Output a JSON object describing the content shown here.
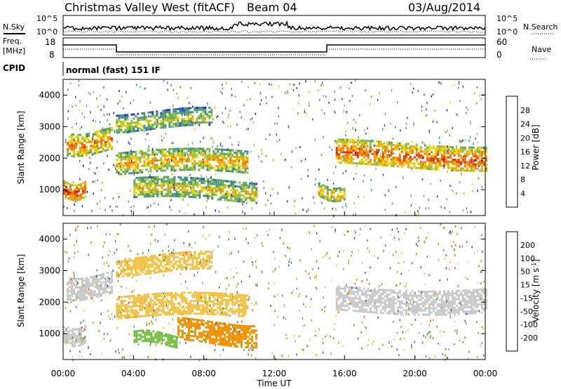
{
  "header": {
    "title": "Christmas Valley West (fitACF)",
    "beam": "Beam 04",
    "date": "03/Aug/2014"
  },
  "panels": {
    "nsky_label": "N.Sky",
    "nsearch_label": "N.Search",
    "nsky_ticks": [
      "10^5",
      "10^0"
    ],
    "nsearch_ticks": [
      "10^5",
      "10^0"
    ],
    "freq_label": "Freq.",
    "freq_unit": "[MHz]",
    "freq_ticks": [
      "18",
      "8"
    ],
    "nave_label": "Nave",
    "nave_ticks": [
      "60",
      "0"
    ],
    "cpid_label": "CPID",
    "cpid_text": "normal (fast) 151 IF"
  },
  "colors": {
    "power_scale": [
      "#1a1acc",
      "#2a4fb0",
      "#3d8a8a",
      "#5ca35c",
      "#8fbf3a",
      "#f0d000",
      "#f5a000",
      "#f26c00",
      "#e83000",
      "#d40000"
    ],
    "velocity_scale": [
      "#e81010",
      "#f05a00",
      "#f29200",
      "#f0c040",
      "#c8c8c8",
      "#c8c8c8",
      "#70c040",
      "#40a040",
      "#3a5fb0",
      "#1a1a9c"
    ]
  },
  "chart_data": [
    {
      "type": "heatmap",
      "name": "power",
      "ylabel": "Slant Range [km]",
      "xlabel": "Time UT",
      "xlim": [
        "00:00",
        "24:00"
      ],
      "ylim": [
        180,
        4500
      ],
      "x_ticks": [
        "00:00",
        "04:00",
        "08:00",
        "12:00",
        "16:00",
        "20:00",
        "00:00"
      ],
      "y_ticks": [
        1000,
        2000,
        3000,
        4000
      ],
      "colorbar_label": "Power [dB]",
      "colorbar_ticks": [
        "4",
        "8",
        "12",
        "16",
        "20",
        "24",
        "28"
      ],
      "colorbar_range": [
        0,
        30
      ],
      "bands": [
        {
          "t": [
            0,
            1.2
          ],
          "r": [
            800,
            1300
          ],
          "level": 26
        },
        {
          "t": [
            0.2,
            2.8
          ],
          "r": [
            2200,
            2900
          ],
          "level": 22
        },
        {
          "t": [
            3.0,
            8.5
          ],
          "r": [
            2900,
            3500
          ],
          "level": 16
        },
        {
          "t": [
            3.0,
            10.5
          ],
          "r": [
            1500,
            2200
          ],
          "level": 20
        },
        {
          "t": [
            4.0,
            11.0
          ],
          "r": [
            650,
            1300
          ],
          "level": 18
        },
        {
          "t": [
            15.5,
            24.0
          ],
          "r": [
            1700,
            2500
          ],
          "level": 24
        },
        {
          "t": [
            14.5,
            16.0
          ],
          "r": [
            750,
            1200
          ],
          "level": 20
        }
      ]
    },
    {
      "type": "heatmap",
      "name": "velocity",
      "ylabel": "Slant Range [km]",
      "xlabel": "Time UT",
      "xlim": [
        "00:00",
        "24:00"
      ],
      "ylim": [
        180,
        4500
      ],
      "x_ticks": [
        "00:00",
        "04:00",
        "08:00",
        "12:00",
        "16:00",
        "20:00",
        "00:00"
      ],
      "y_ticks": [
        1000,
        2000,
        3000,
        4000
      ],
      "colorbar_label": "Velocity [m s^-1]",
      "colorbar_ticks": [
        "-200",
        "-100",
        "-50",
        "-15",
        "15",
        "50",
        "100",
        "200"
      ],
      "colorbar_range": [
        -250,
        250
      ],
      "bands": [
        {
          "t": [
            0,
            1.2
          ],
          "r": [
            700,
            1300
          ],
          "velocity": 0
        },
        {
          "t": [
            0.2,
            2.8
          ],
          "r": [
            2200,
            2900
          ],
          "velocity": 0
        },
        {
          "t": [
            3.0,
            8.5
          ],
          "r": [
            2900,
            3500
          ],
          "velocity": -30
        },
        {
          "t": [
            3.0,
            10.5
          ],
          "r": [
            1500,
            2200
          ],
          "velocity": -20
        },
        {
          "t": [
            4.0,
            6.5
          ],
          "r": [
            650,
            1000
          ],
          "velocity": 30
        },
        {
          "t": [
            6.5,
            11.0
          ],
          "r": [
            700,
            1400
          ],
          "velocity": -60
        },
        {
          "t": [
            15.5,
            24.0
          ],
          "r": [
            1700,
            2500
          ],
          "velocity": 0
        }
      ]
    }
  ]
}
